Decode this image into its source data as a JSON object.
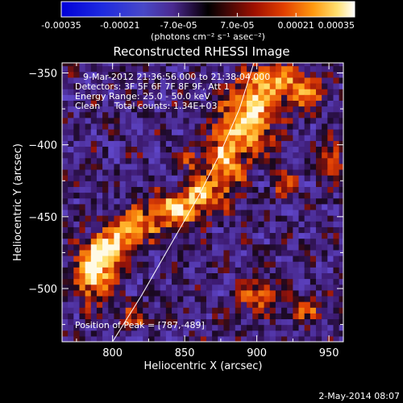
{
  "chart_data": {
    "type": "heatmap",
    "title": "Reconstructed RHESSI Image",
    "xlabel": "Heliocentric X (arcsec)",
    "ylabel": "Heliocentric Y (arcsec)",
    "xlim": [
      765,
      960
    ],
    "ylim": [
      -537,
      -343
    ],
    "x_ticks": [
      800,
      850,
      900,
      950
    ],
    "y_ticks": [
      -350,
      -400,
      -450,
      -500
    ],
    "colorbar": {
      "ticks": [
        "-0.00035",
        "-0.00021",
        "-7.0e-05",
        "7.0e-05",
        "0.00021",
        "0.00035"
      ],
      "range": [
        -0.00035,
        0.00035
      ],
      "unit_label": "(photons cm⁻² s⁻¹ asec⁻²)"
    },
    "annotations": [
      "9-Mar-2012 21:36:56.000 to 21:38:04.000",
      "Detectors: 3F 5F 6F 7F 8F 9F, Att 1",
      "Energy Range: 25.0 - 50.0 keV",
      "Clean     Total counts: 1.34E+03"
    ],
    "peak_label": "Position of Peak = [787,-489]",
    "peak": [
      787,
      -489
    ],
    "limb_curve": [
      [
        800,
        -537
      ],
      [
        820,
        -505
      ],
      [
        840,
        -470
      ],
      [
        860,
        -435
      ],
      [
        875,
        -405
      ],
      [
        888,
        -375
      ],
      [
        898,
        -343
      ]
    ],
    "sources": [
      {
        "x": 787,
        "y": -489,
        "sx": 9,
        "sy": 13,
        "amp": 1.0
      },
      {
        "x": 797,
        "y": -472,
        "sx": 10,
        "sy": 8,
        "amp": 0.85
      },
      {
        "x": 815,
        "y": -458,
        "sx": 10,
        "sy": 8,
        "amp": 0.8
      },
      {
        "x": 843,
        "y": -445,
        "sx": 12,
        "sy": 9,
        "amp": 0.9
      },
      {
        "x": 862,
        "y": -433,
        "sx": 8,
        "sy": 8,
        "amp": 0.7
      },
      {
        "x": 878,
        "y": -410,
        "sx": 8,
        "sy": 18,
        "amp": 0.75
      },
      {
        "x": 895,
        "y": -380,
        "sx": 12,
        "sy": 18,
        "amp": 0.95
      },
      {
        "x": 913,
        "y": -355,
        "sx": 10,
        "sy": 9,
        "amp": 0.75
      },
      {
        "x": 935,
        "y": -362,
        "sx": 8,
        "sy": 9,
        "amp": 0.7
      },
      {
        "x": 950,
        "y": -410,
        "sx": 6,
        "sy": 9,
        "amp": 0.6
      },
      {
        "x": 920,
        "y": -428,
        "sx": 6,
        "sy": 6,
        "amp": 0.5
      },
      {
        "x": 900,
        "y": -505,
        "sx": 10,
        "sy": 8,
        "amp": 0.55
      },
      {
        "x": 935,
        "y": -515,
        "sx": 7,
        "sy": 6,
        "amp": 0.45
      },
      {
        "x": 815,
        "y": -520,
        "sx": 8,
        "sy": 6,
        "amp": 0.4
      },
      {
        "x": 855,
        "y": -410,
        "sx": 5,
        "sy": 5,
        "amp": 0.45
      }
    ]
  },
  "footer": {
    "timestamp": "2-May-2014 08:07"
  }
}
